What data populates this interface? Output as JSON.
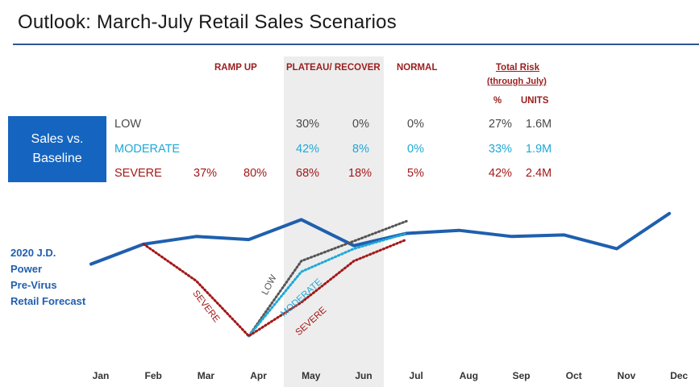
{
  "title": "Outlook: March-July Retail Sales Scenarios",
  "table": {
    "headers": {
      "ramp_up": "RAMP UP",
      "plateau": "PLATEAU/ RECOVER",
      "normal": "NORMAL",
      "total_risk": "Total Risk",
      "through_july": "(through July)",
      "pct": "%",
      "units": "UNITS"
    },
    "badge_line1": "Sales vs.",
    "badge_line2": "Baseline",
    "rows": [
      {
        "label": "LOW",
        "ramp1": "",
        "ramp2": "",
        "plat1": "30%",
        "plat2": "0%",
        "normal": "0%",
        "pct": "27%",
        "units": "1.6M"
      },
      {
        "label": "MODERATE",
        "ramp1": "",
        "ramp2": "",
        "plat1": "42%",
        "plat2": "8%",
        "normal": "0%",
        "pct": "33%",
        "units": "1.9M"
      },
      {
        "label": "SEVERE",
        "ramp1": "37%",
        "ramp2": "80%",
        "plat1": "68%",
        "plat2": "18%",
        "normal": "5%",
        "pct": "42%",
        "units": "2.4M"
      }
    ]
  },
  "series_label_lines": [
    "2020 J.D.",
    "Power",
    "Pre-Virus",
    "Retail Forecast"
  ],
  "colors": {
    "forecast": "#1f5fae",
    "low": "#555555",
    "moderate": "#1fa8d8",
    "severe": "#a31818",
    "badge": "#1565c0"
  },
  "chart_data": {
    "type": "line",
    "categories": [
      "Jan",
      "Feb",
      "Mar",
      "Apr",
      "May",
      "Jun",
      "Jul",
      "Aug",
      "Sep",
      "Oct",
      "Nov",
      "Dec"
    ],
    "y_axis_labels": false,
    "ylim": [
      0,
      100
    ],
    "shaded_categories": [
      "May",
      "Jun"
    ],
    "series": [
      {
        "name": "2020 J.D. Power Pre-Virus Retail Forecast",
        "style": "solid",
        "color": "#1f5fae",
        "x": [
          "Jan",
          "Feb",
          "Mar",
          "Apr",
          "May",
          "Jun",
          "Jul",
          "Aug",
          "Sep",
          "Oct",
          "Nov",
          "Dec"
        ],
        "values": [
          55,
          68,
          73,
          71,
          84,
          67,
          75,
          77,
          73,
          74,
          65,
          88
        ]
      },
      {
        "name": "LOW",
        "style": "dotted",
        "color": "#555555",
        "x": [
          "Apr",
          "May",
          "Jun",
          "Jul"
        ],
        "values": [
          8,
          57,
          70,
          83
        ]
      },
      {
        "name": "MODERATE",
        "style": "dotted",
        "color": "#1fa8d8",
        "x": [
          "Apr",
          "May",
          "Jun",
          "Jul"
        ],
        "values": [
          8,
          50,
          65,
          75
        ]
      },
      {
        "name": "SEVERE",
        "style": "dotted",
        "color": "#a31818",
        "x": [
          "Feb",
          "Mar",
          "Apr",
          "May",
          "Jun",
          "Jul"
        ],
        "values": [
          68,
          44,
          8,
          30,
          57,
          71
        ]
      }
    ]
  }
}
